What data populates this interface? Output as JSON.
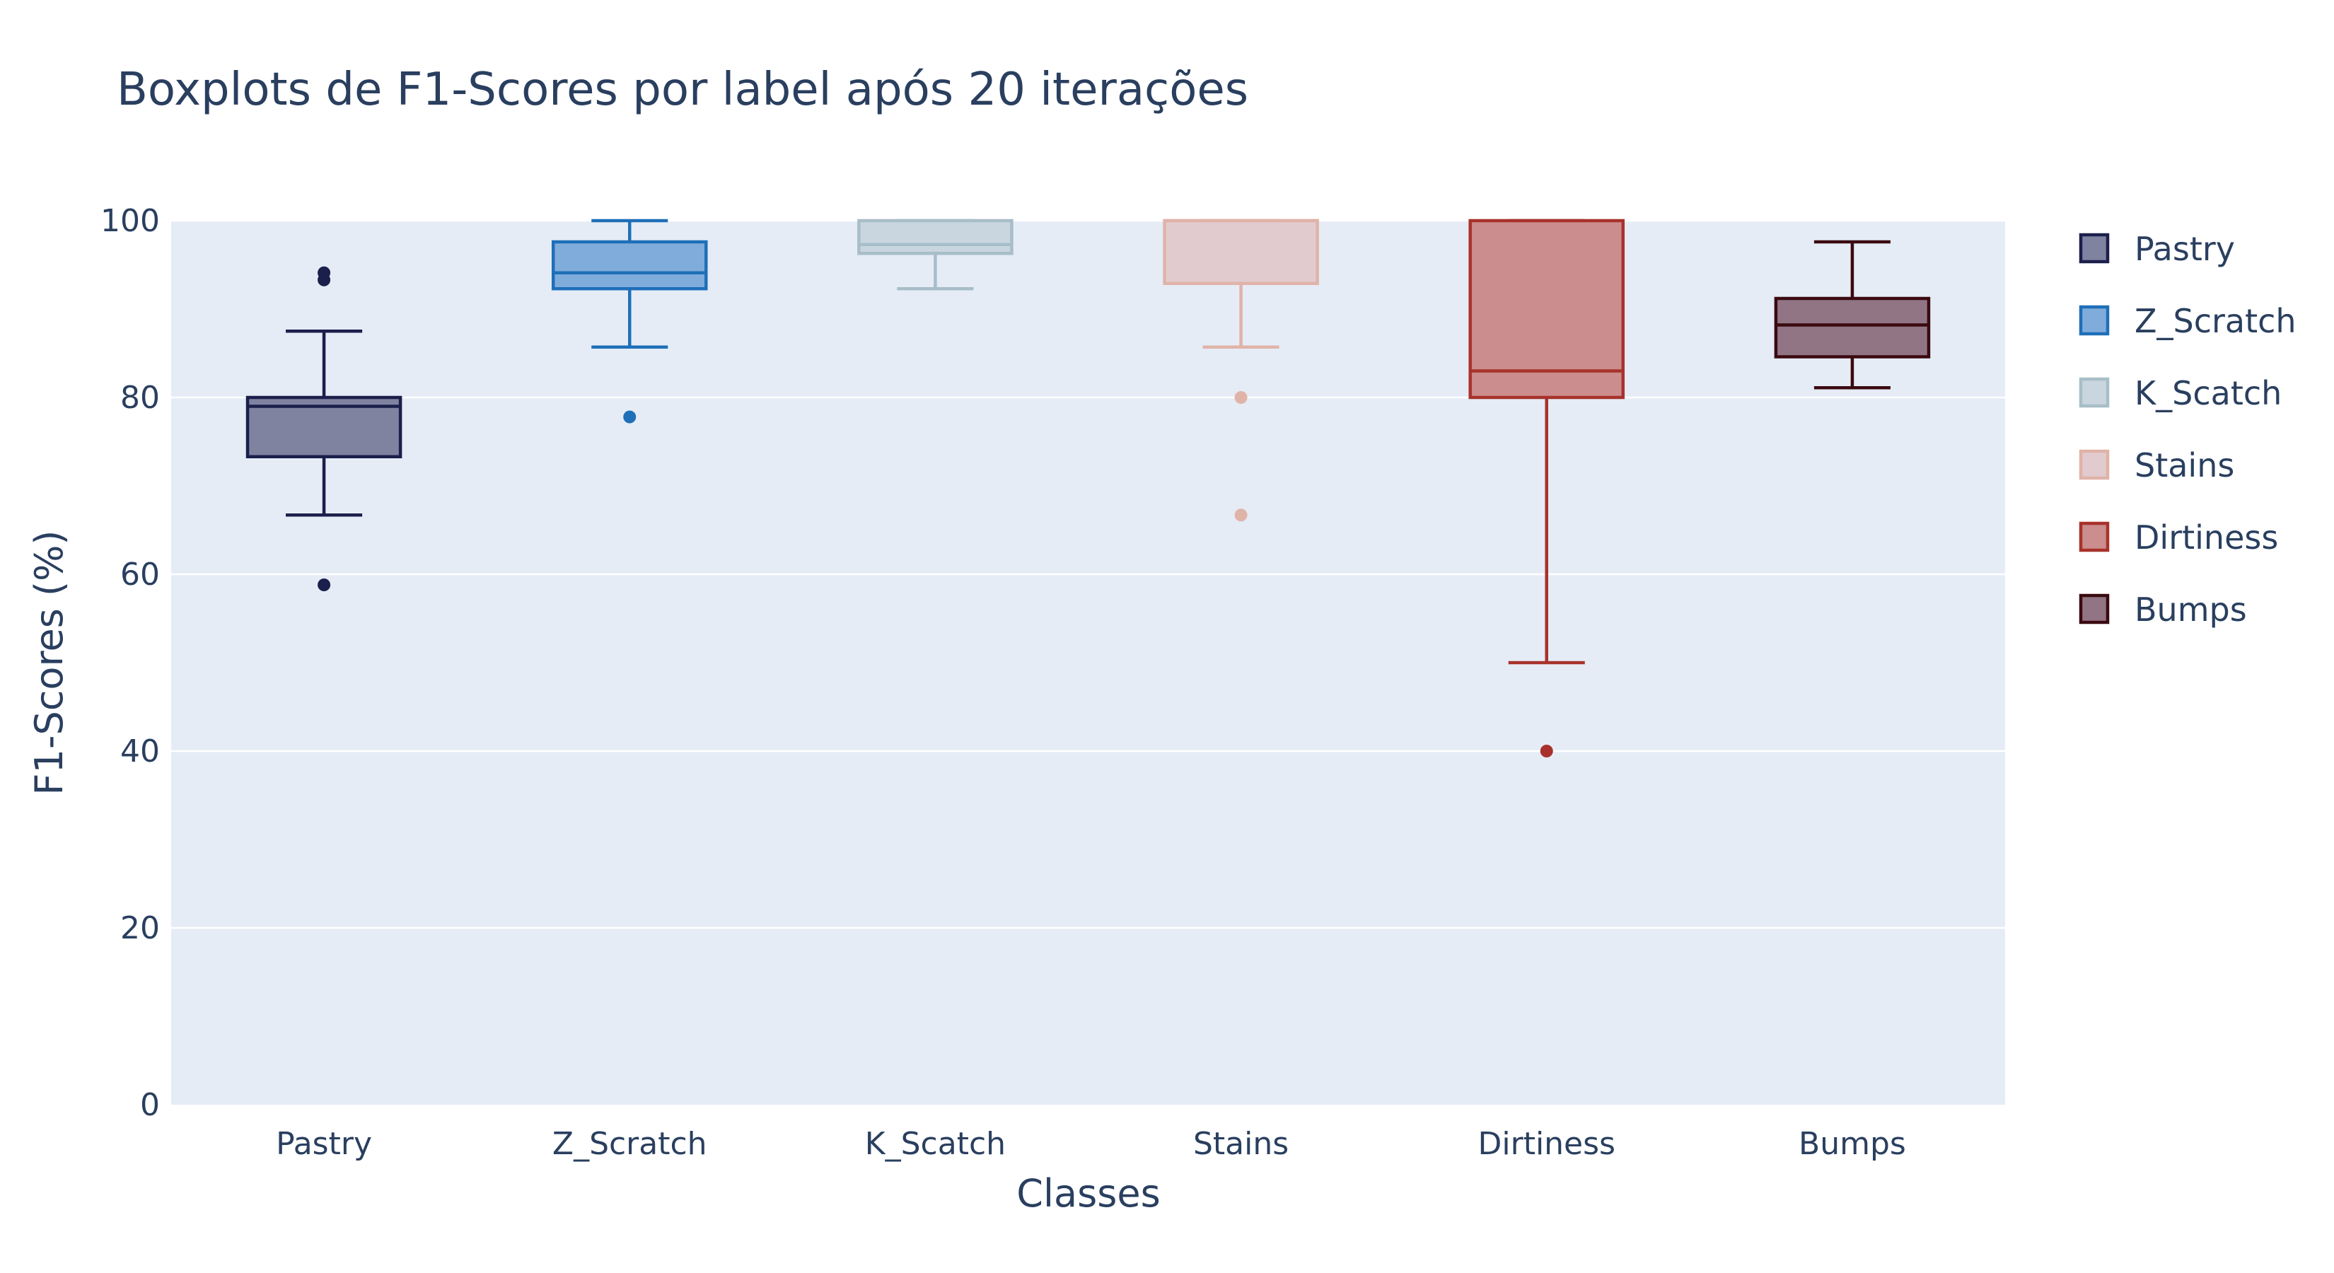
{
  "chart_data": {
    "type": "box",
    "title": "Boxplots de F1-Scores por label após 20 iterações",
    "xlabel": "Classes",
    "ylabel": "F1-Scores (%)",
    "ylim": [
      0,
      100
    ],
    "yticks": [
      0,
      20,
      40,
      60,
      80,
      100
    ],
    "grid": true,
    "legend_position": "right",
    "categories": [
      "Pastry",
      "Z_Scratch",
      "K_Scatch",
      "Stains",
      "Dirtiness",
      "Bumps"
    ],
    "series": [
      {
        "name": "Pastry",
        "color": "#1b1f4b",
        "fill": "#7f83a0",
        "lowerfence": 66.7,
        "q1": 73.3,
        "median": 79.0,
        "q3": 80.0,
        "upperfence": 87.5,
        "outliers": [
          58.8,
          93.3,
          94.1
        ]
      },
      {
        "name": "Z_Scratch",
        "color": "#1f6fb8",
        "fill": "#80acdb",
        "lowerfence": 85.7,
        "q1": 92.3,
        "median": 94.1,
        "q3": 97.6,
        "upperfence": 100.0,
        "outliers": [
          77.8
        ]
      },
      {
        "name": "K_Scatch",
        "color": "#a7bec8",
        "fill": "#c9d6df",
        "lowerfence": 92.3,
        "q1": 96.3,
        "median": 97.3,
        "q3": 100.0,
        "upperfence": 100.0,
        "outliers": []
      },
      {
        "name": "Stains",
        "color": "#e0b3a8",
        "fill": "#e2cbcf",
        "lowerfence": 85.7,
        "q1": 92.9,
        "median": 100.0,
        "q3": 100.0,
        "upperfence": 100.0,
        "outliers": [
          66.7,
          80.0
        ]
      },
      {
        "name": "Dirtiness",
        "color": "#a8322b",
        "fill": "#cb8d8e",
        "lowerfence": 50.0,
        "q1": 80.0,
        "median": 83.0,
        "q3": 100.0,
        "upperfence": 100.0,
        "outliers": [
          40.0
        ]
      },
      {
        "name": "Bumps",
        "color": "#3a0a10",
        "fill": "#917584",
        "lowerfence": 81.1,
        "q1": 84.6,
        "median": 88.2,
        "q3": 91.2,
        "upperfence": 97.6,
        "outliers": []
      }
    ]
  }
}
